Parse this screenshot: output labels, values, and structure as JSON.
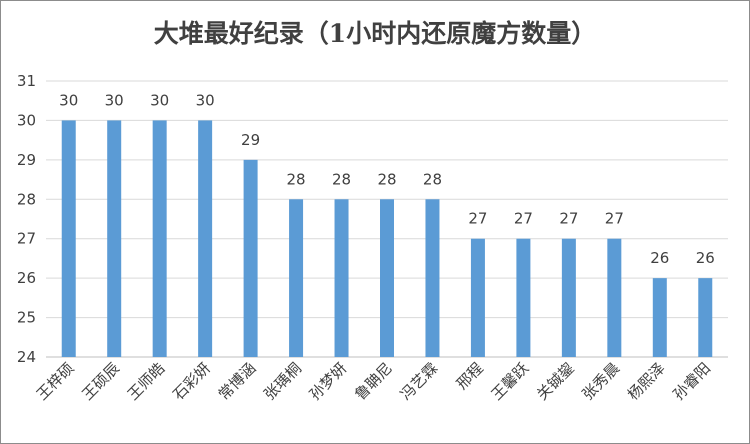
{
  "chart_data": {
    "type": "bar",
    "title": "大堆最好纪录（1小时内还原魔方数量）",
    "categories": [
      "王梓硕",
      "王硕辰",
      "王师皓",
      "石彩妍",
      "常博涵",
      "张瑀桐",
      "孙梦妍",
      "鲁聃尼",
      "冯艺霖",
      "邢程",
      "王馨跃",
      "关铖鋆",
      "张秀晨",
      "杨熙泽",
      "孙睿阳"
    ],
    "values": [
      30,
      30,
      30,
      30,
      29,
      28,
      28,
      28,
      28,
      27,
      27,
      27,
      27,
      26,
      26
    ],
    "ylim": [
      24,
      31
    ],
    "yticks": [
      24,
      25,
      26,
      27,
      28,
      29,
      30,
      31
    ],
    "xlabel": "",
    "ylabel": "",
    "grid": true,
    "bar_color": "#5b9bd5",
    "grid_color": "#d9d9d9"
  }
}
